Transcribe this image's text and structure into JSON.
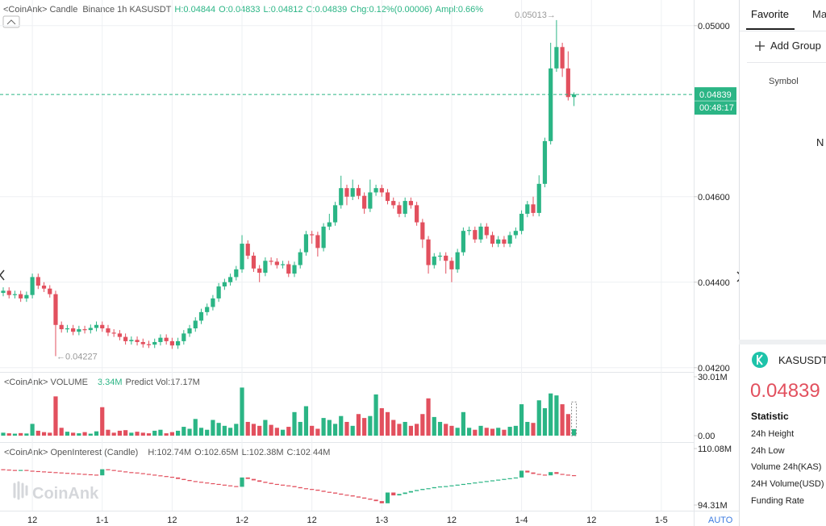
{
  "header": {
    "source": "<CoinAnk> Candle",
    "market": "Binance 1h KASUSDT",
    "stats": [
      "H:0.04844",
      "O:0.04833",
      "L:0.04812",
      "C:0.04839",
      "Chg:0.12%(0.00006)",
      "Ampl:0.66%"
    ]
  },
  "chart_data": [
    {
      "type": "candlestick",
      "up_color": "#2bb585",
      "down_color": "#e2505e",
      "ylim": [
        0.04192,
        0.0506
      ],
      "yticks": [
        {
          "value": 0.05,
          "label": "0.05000"
        },
        {
          "value": 0.046,
          "label": "0.04600"
        },
        {
          "value": 0.044,
          "label": "0.04400"
        },
        {
          "value": 0.042,
          "label": "0.04200"
        }
      ],
      "grid": true,
      "price_tag": "0.04839",
      "countdown": "00:48:17",
      "high_label": "0.05013→",
      "low_label": "←0.04227",
      "open": [
        0.04375,
        0.0438,
        0.0437,
        0.04372,
        0.04362,
        0.0437,
        0.04412,
        0.04392,
        0.04385,
        0.04372,
        0.043,
        0.0429,
        0.04292,
        0.04284,
        0.0429,
        0.04288,
        0.04293,
        0.043,
        0.04292,
        0.04282,
        0.0428,
        0.04272,
        0.04262,
        0.04265,
        0.0426,
        0.04255,
        0.04254,
        0.0426,
        0.0427,
        0.04262,
        0.04252,
        0.04262,
        0.0428,
        0.04292,
        0.0431,
        0.0433,
        0.04342,
        0.04362,
        0.0439,
        0.044,
        0.04412,
        0.0443,
        0.0449,
        0.04462,
        0.04432,
        0.04422,
        0.0445,
        0.04448,
        0.0444,
        0.04442,
        0.0442,
        0.0444,
        0.0447,
        0.04512,
        0.0451,
        0.0448,
        0.0453,
        0.0454,
        0.0458,
        0.0462,
        0.046,
        0.0462,
        0.04602,
        0.04572,
        0.0461,
        0.0462,
        0.0461,
        0.0459,
        0.0458,
        0.0456,
        0.0459,
        0.0458,
        0.0454,
        0.045,
        0.0444,
        0.0446,
        0.04462,
        0.0445,
        0.0443,
        0.0447,
        0.0452,
        0.04522,
        0.045,
        0.0453,
        0.0451,
        0.0449,
        0.045,
        0.0449,
        0.0451,
        0.0452,
        0.0456,
        0.04582,
        0.04562,
        0.0463,
        0.0473,
        0.049,
        0.0495,
        0.049,
        0.04833
      ],
      "high": [
        0.04388,
        0.04388,
        0.0438,
        0.0438,
        0.04378,
        0.0442,
        0.0442,
        0.044,
        0.04393,
        0.0438,
        0.04308,
        0.043,
        0.043,
        0.04298,
        0.04298,
        0.04301,
        0.04308,
        0.04308,
        0.043,
        0.0429,
        0.04288,
        0.0428,
        0.04273,
        0.04273,
        0.04268,
        0.04263,
        0.04268,
        0.04278,
        0.04278,
        0.0427,
        0.0427,
        0.04288,
        0.043,
        0.04318,
        0.04338,
        0.0435,
        0.0437,
        0.04398,
        0.04408,
        0.0442,
        0.04438,
        0.0451,
        0.04498,
        0.0447,
        0.0444,
        0.04458,
        0.04458,
        0.04456,
        0.0445,
        0.0445,
        0.04448,
        0.04478,
        0.0452,
        0.0452,
        0.04518,
        0.04538,
        0.0456,
        0.04588,
        0.04649,
        0.04628,
        0.0464,
        0.04628,
        0.0461,
        0.0464,
        0.04628,
        0.04628,
        0.04618,
        0.04598,
        0.04588,
        0.04598,
        0.04598,
        0.04588,
        0.04548,
        0.04508,
        0.04468,
        0.0447,
        0.0447,
        0.04458,
        0.04478,
        0.04528,
        0.0453,
        0.0453,
        0.04538,
        0.04538,
        0.04518,
        0.04508,
        0.04508,
        0.04518,
        0.04528,
        0.04568,
        0.0459,
        0.046,
        0.0465,
        0.04738,
        0.0496,
        0.05013,
        0.0496,
        0.0494,
        0.04844
      ],
      "low": [
        0.04367,
        0.04362,
        0.04362,
        0.04354,
        0.04354,
        0.04362,
        0.04384,
        0.04377,
        0.04364,
        0.04227,
        0.04282,
        0.04282,
        0.04276,
        0.04276,
        0.0428,
        0.0428,
        0.04285,
        0.04284,
        0.04274,
        0.04272,
        0.04264,
        0.04254,
        0.04254,
        0.04252,
        0.04247,
        0.04246,
        0.04246,
        0.04252,
        0.04254,
        0.04244,
        0.04244,
        0.04254,
        0.04272,
        0.04284,
        0.04302,
        0.04322,
        0.04334,
        0.04354,
        0.04382,
        0.04392,
        0.04404,
        0.04422,
        0.04454,
        0.04424,
        0.044,
        0.04414,
        0.0444,
        0.04432,
        0.04432,
        0.04412,
        0.04412,
        0.04432,
        0.04462,
        0.0449,
        0.0446,
        0.04472,
        0.04522,
        0.04532,
        0.04572,
        0.0458,
        0.04592,
        0.04594,
        0.0456,
        0.04564,
        0.04602,
        0.046,
        0.04582,
        0.04572,
        0.04552,
        0.04552,
        0.04572,
        0.04532,
        0.0448,
        0.0442,
        0.04432,
        0.0445,
        0.0442,
        0.044,
        0.04422,
        0.04462,
        0.0451,
        0.04492,
        0.04492,
        0.04502,
        0.04482,
        0.04482,
        0.04482,
        0.04482,
        0.04502,
        0.04512,
        0.04552,
        0.04554,
        0.04554,
        0.04622,
        0.04722,
        0.04892,
        0.0488,
        0.04825,
        0.04812
      ],
      "close": [
        0.0438,
        0.0437,
        0.04372,
        0.04362,
        0.0437,
        0.04412,
        0.04392,
        0.04385,
        0.04372,
        0.043,
        0.0429,
        0.04292,
        0.04284,
        0.0429,
        0.04288,
        0.04293,
        0.043,
        0.04292,
        0.04282,
        0.0428,
        0.04272,
        0.04262,
        0.04265,
        0.0426,
        0.04255,
        0.04254,
        0.0426,
        0.0427,
        0.04262,
        0.04252,
        0.04262,
        0.0428,
        0.04292,
        0.0431,
        0.0433,
        0.04342,
        0.04362,
        0.0439,
        0.044,
        0.04412,
        0.0443,
        0.0449,
        0.04462,
        0.04432,
        0.04422,
        0.0445,
        0.04448,
        0.0444,
        0.04442,
        0.0442,
        0.0444,
        0.0447,
        0.04512,
        0.0451,
        0.0448,
        0.0453,
        0.0454,
        0.0458,
        0.0462,
        0.046,
        0.0462,
        0.04602,
        0.04572,
        0.0461,
        0.0462,
        0.0461,
        0.0459,
        0.0458,
        0.0456,
        0.0459,
        0.0458,
        0.0454,
        0.045,
        0.0444,
        0.0446,
        0.04462,
        0.0445,
        0.0443,
        0.0447,
        0.0452,
        0.04522,
        0.045,
        0.0453,
        0.0451,
        0.0449,
        0.045,
        0.0449,
        0.0451,
        0.0452,
        0.0456,
        0.04582,
        0.04562,
        0.0463,
        0.0473,
        0.049,
        0.0495,
        0.049,
        0.04833,
        0.04839
      ]
    },
    {
      "type": "bar",
      "title": "<CoinAnk> VOLUME",
      "current_label": "3.34M",
      "predict_label": "Predict Vol:17.17M",
      "predict": 17.17,
      "up_color": "#2bb585",
      "down_color": "#e2505e",
      "ylim": [
        0,
        30.01
      ],
      "yticks": [
        {
          "value": 30.01,
          "label": "30.01M"
        },
        {
          "value": 0,
          "label": "0.00"
        }
      ],
      "grid": false,
      "values": [
        1.5,
        1.2,
        1.0,
        1.3,
        1.1,
        6.0,
        2.5,
        1.8,
        1.5,
        20.0,
        4.0,
        2.0,
        1.5,
        1.2,
        1.8,
        1.0,
        2.2,
        14.5,
        3.0,
        1.5,
        2.5,
        2.8,
        1.5,
        2.0,
        1.5,
        1.2,
        2.5,
        3.0,
        1.2,
        1.8,
        2.5,
        4.5,
        3.5,
        8.5,
        4.0,
        3.0,
        8.0,
        6.5,
        5.0,
        4.0,
        6.0,
        24.5,
        7.0,
        6.0,
        5.0,
        8.0,
        5.5,
        4.0,
        3.0,
        4.5,
        12.0,
        7.0,
        15.0,
        5.0,
        3.5,
        9.0,
        8.0,
        6.0,
        10.0,
        7.0,
        5.0,
        11.0,
        9.0,
        10.0,
        21.0,
        14.0,
        12.0,
        8.0,
        6.0,
        7.0,
        5.0,
        6.0,
        11.0,
        19.0,
        9.5,
        7.0,
        6.0,
        5.0,
        4.0,
        12.0,
        4.0,
        3.0,
        5.0,
        4.0,
        3.5,
        4.0,
        3.0,
        4.5,
        5.0,
        16.0,
        7.0,
        6.5,
        18.0,
        14.0,
        21.5,
        20.5,
        16.0,
        11.0,
        3.34
      ]
    },
    {
      "type": "candlestick",
      "title": "<CoinAnk> OpenInterest (Candle)",
      "stats": [
        "H:102.74M",
        "O:102.65M",
        "L:102.38M",
        "C:102.44M"
      ],
      "up_color": "#2bb585",
      "down_color": "#e2505e",
      "ylim": [
        94.31,
        110.08
      ],
      "yticks": [
        {
          "value": 110.08,
          "label": "110.08M"
        },
        {
          "value": 94.31,
          "label": "94.31M"
        }
      ],
      "grid": false,
      "categories": [
        null,
        null,
        null,
        null,
        null,
        "12",
        null,
        null,
        null,
        null,
        null,
        null,
        null,
        null,
        null,
        null,
        null,
        "1-1",
        null,
        null,
        null,
        null,
        null,
        null,
        null,
        null,
        null,
        null,
        null,
        "12",
        null,
        null,
        null,
        null,
        null,
        null,
        null,
        null,
        null,
        null,
        null,
        "1-2",
        null,
        null,
        null,
        null,
        null,
        null,
        null,
        null,
        null,
        null,
        null,
        "12",
        null,
        null,
        null,
        null,
        null,
        null,
        null,
        null,
        null,
        null,
        null,
        "1-3",
        null,
        null,
        null,
        null,
        null,
        null,
        null,
        null,
        null,
        null,
        null,
        "12",
        null,
        null,
        null,
        null,
        null,
        null,
        null,
        null,
        null,
        null,
        null,
        "1-4",
        null,
        null,
        null,
        null,
        null,
        null,
        null,
        null,
        null,
        null,
        null,
        "12",
        null,
        null,
        null,
        null,
        null,
        null,
        null,
        null,
        null,
        null,
        null,
        "1-5",
        null,
        null,
        null,
        null,
        null
      ],
      "open": [
        104.3,
        104.2,
        104.1,
        104.0,
        104.1,
        103.9,
        103.8,
        103.7,
        103.6,
        103.5,
        103.4,
        103.3,
        103.2,
        103.1,
        103.0,
        102.9,
        102.8,
        102.6,
        104.3,
        104.1,
        103.9,
        103.7,
        103.5,
        103.4,
        103.2,
        103.0,
        102.8,
        102.6,
        102.4,
        102.2,
        102.0,
        101.6,
        101.3,
        101.0,
        100.8,
        100.6,
        100.4,
        100.2,
        100.0,
        99.8,
        99.6,
        99.4,
        102.0,
        101.6,
        101.2,
        100.8,
        100.5,
        100.2,
        100.0,
        99.8,
        99.6,
        99.3,
        99.0,
        98.8,
        98.6,
        98.3,
        98.0,
        97.8,
        97.5,
        97.2,
        97.0,
        96.7,
        96.4,
        96.1,
        95.8,
        95.4,
        94.8,
        97.8,
        97.0,
        97.4,
        97.8,
        98.2,
        98.5,
        98.8,
        99.0,
        99.3,
        99.5,
        99.6,
        99.8,
        100.0,
        100.2,
        100.4,
        100.6,
        100.8,
        101.0,
        101.2,
        101.4,
        101.6,
        101.8,
        102.0,
        103.9,
        103.4,
        103.0,
        102.8,
        102.6,
        103.5,
        103.0,
        102.8,
        102.65,
        null,
        null,
        null,
        null,
        null,
        null,
        null,
        null,
        null,
        null,
        null,
        null,
        null,
        null,
        null,
        null,
        null,
        null,
        null,
        null
      ],
      "close": [
        104.2,
        104.1,
        104.0,
        104.1,
        103.9,
        103.8,
        103.7,
        103.6,
        103.5,
        103.4,
        103.3,
        103.2,
        103.1,
        103.0,
        102.9,
        102.8,
        102.6,
        104.3,
        104.1,
        103.9,
        103.7,
        103.5,
        103.4,
        103.2,
        103.0,
        102.8,
        102.6,
        102.4,
        102.2,
        102.0,
        101.6,
        101.3,
        101.0,
        100.8,
        100.6,
        100.4,
        100.2,
        100.0,
        99.8,
        99.6,
        99.4,
        102.0,
        101.6,
        101.2,
        100.8,
        100.5,
        100.2,
        100.0,
        99.8,
        99.6,
        99.3,
        99.0,
        98.8,
        98.6,
        98.3,
        98.0,
        97.8,
        97.5,
        97.2,
        97.0,
        96.7,
        96.4,
        96.1,
        95.8,
        95.4,
        94.8,
        97.8,
        97.0,
        97.4,
        97.8,
        98.2,
        98.5,
        98.8,
        99.0,
        99.3,
        99.5,
        99.6,
        99.8,
        100.0,
        100.2,
        100.4,
        100.6,
        100.8,
        101.0,
        101.2,
        101.4,
        101.6,
        101.8,
        102.0,
        103.9,
        103.4,
        103.0,
        102.8,
        102.6,
        103.5,
        103.0,
        102.8,
        102.65,
        102.44,
        null,
        null,
        null,
        null,
        null,
        null,
        null,
        null,
        null,
        null,
        null,
        null,
        null,
        null,
        null,
        null,
        null,
        null,
        null,
        null
      ]
    }
  ],
  "watermark": "CoinAnk",
  "scale_mode": "AUTO",
  "sidebar": {
    "tabs": [
      "Favorite",
      "Ma"
    ],
    "add_group": "Add Group",
    "symbol_header": "Symbol",
    "cut_text": "N",
    "ticker": {
      "symbol": "KASUSDT",
      "price": "0.04839",
      "section": "Statistic",
      "rows": [
        "24h Height",
        "24h Low",
        "Volume 24h(KAS)",
        "24H Volume(USD)",
        "Funding Rate"
      ]
    }
  }
}
